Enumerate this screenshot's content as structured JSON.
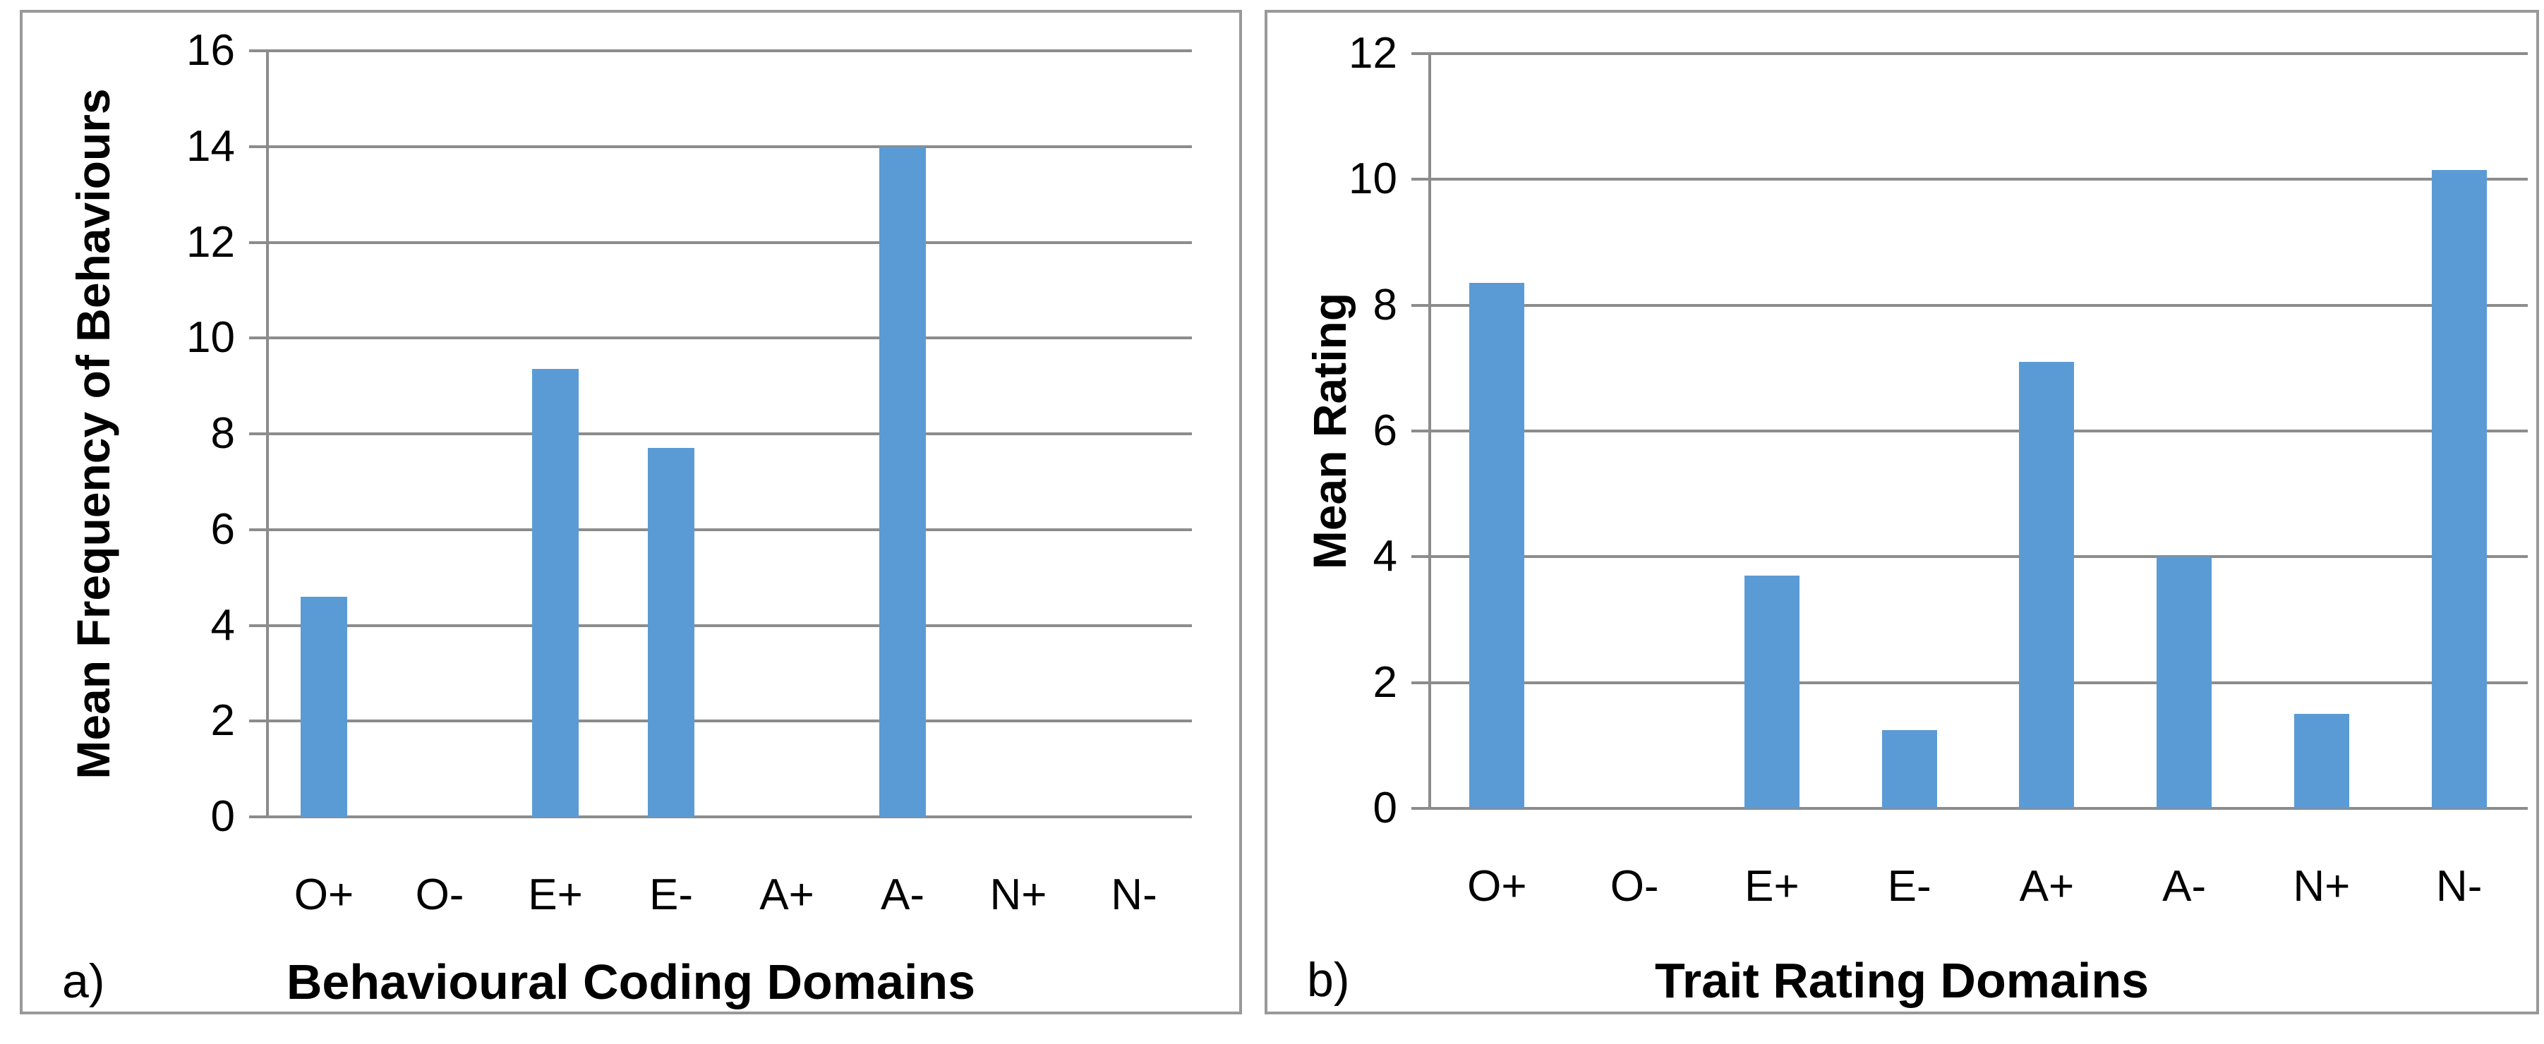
{
  "figure": {
    "panel_labels": [
      "a)",
      "b)"
    ]
  },
  "chart_data": [
    {
      "type": "bar",
      "panel_label": "a)",
      "categories": [
        "O+",
        "O-",
        "E+",
        "E-",
        "A+",
        "A-",
        "N+",
        "N-"
      ],
      "values": [
        4.6,
        0,
        9.35,
        7.7,
        0,
        14,
        0,
        0
      ],
      "title": "",
      "xlabel": "Behavioural Coding Domains",
      "ylabel": "Mean Frequency of Behaviours",
      "ylim": [
        0,
        16
      ],
      "ytick_step": 2,
      "grid": true,
      "legend": "none",
      "bar_color": "#5B9BD5",
      "gridline_color": "#8C8C8C",
      "axis_color": "#8C8C8C",
      "border_color": "#999999"
    },
    {
      "type": "bar",
      "panel_label": "b)",
      "categories": [
        "O+",
        "O-",
        "E+",
        "E-",
        "A+",
        "A-",
        "N+",
        "N-"
      ],
      "values": [
        8.35,
        0,
        3.7,
        1.25,
        7.1,
        4,
        1.5,
        10.15
      ],
      "title": "",
      "xlabel": "Trait Rating Domains",
      "ylabel": "Mean Rating",
      "ylim": [
        0,
        12
      ],
      "ytick_step": 2,
      "grid": true,
      "legend": "none",
      "bar_color": "#5B9BD5",
      "gridline_color": "#8C8C8C",
      "axis_color": "#8C8C8C",
      "border_color": "#999999"
    }
  ]
}
